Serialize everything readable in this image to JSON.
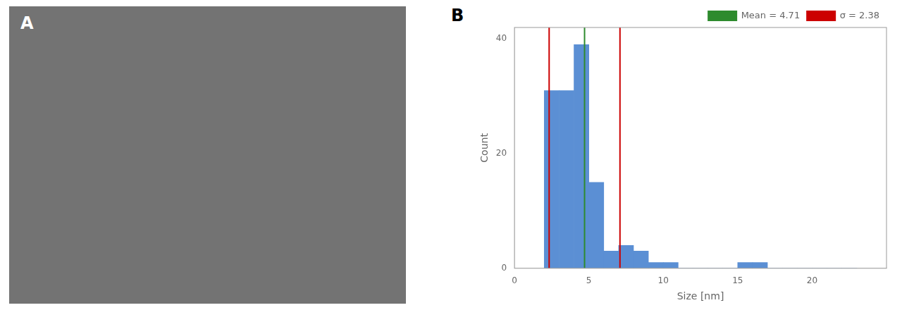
{
  "chart_data": {
    "type": "histogram",
    "bins": [
      2,
      3,
      4,
      5,
      6,
      7,
      8,
      9,
      10,
      11,
      12,
      13,
      14,
      15,
      16,
      17,
      18,
      19,
      20,
      21,
      22,
      23
    ],
    "values": [
      31,
      31,
      39,
      15,
      3,
      4,
      3,
      1,
      1,
      0,
      0,
      0,
      0,
      1,
      1,
      0,
      0,
      0,
      0,
      0,
      0
    ],
    "color": "#5B8FD4",
    "series": [
      {
        "name": "Mean = 4.71",
        "type": "vline",
        "color": "#2E8B2E",
        "values": [
          4.71
        ]
      },
      {
        "name": "σ = 2.38",
        "type": "vline",
        "color": "#CC0000",
        "values": [
          2.33,
          7.09
        ]
      }
    ],
    "xlabel": "Size [nm]",
    "ylabel": "Count",
    "xlim": [
      0,
      25
    ],
    "ylim": [
      0,
      42
    ],
    "xticks": [
      0,
      5,
      10,
      15,
      20
    ],
    "yticks": [
      0,
      20,
      40
    ],
    "grid": false,
    "legend": "upper right",
    "annotations": [
      "A",
      "B"
    ]
  }
}
